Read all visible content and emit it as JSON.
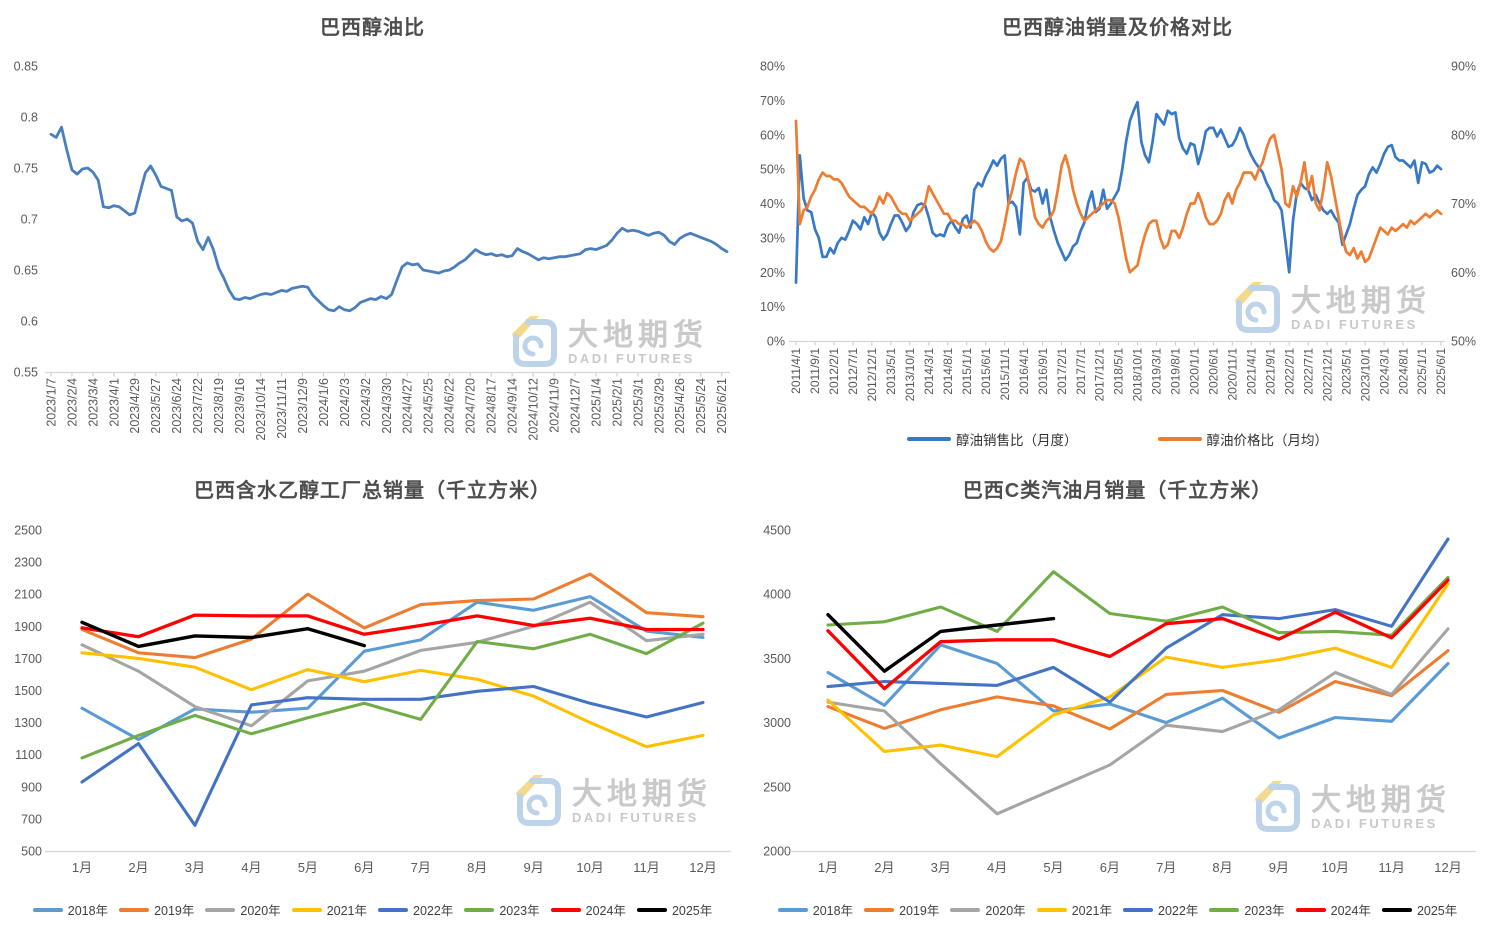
{
  "page": {
    "background": "#ffffff"
  },
  "watermark": {
    "cn": "大地期货",
    "en": "DADI FUTURES",
    "logo_blue": "#bdd3ea",
    "logo_yellow": "#f2d98c",
    "text_color": "#c9c9c9"
  },
  "chart_data": [
    {
      "id": "ethanol_oil_ratio",
      "type": "line",
      "title": "巴西醇油比",
      "ylabel": "",
      "xlabel": "",
      "y_axis": {
        "min": 0.55,
        "max": 0.85,
        "tick_values": [
          0.85,
          0.8,
          0.75,
          0.7,
          0.65,
          0.6,
          0.55
        ],
        "tick_labels": [
          "0.85",
          "0.8",
          "0.75",
          "0.7",
          "0.65",
          "0.6",
          "0.55"
        ]
      },
      "label_every": 4,
      "x_tick_labels": [
        "2023/1/7",
        "2023/2/4",
        "2023/3/4",
        "2023/4/1",
        "2023/4/29",
        "2023/5/27",
        "2023/6/24",
        "2023/7/22",
        "2023/8/19",
        "2023/9/16",
        "2023/10/14",
        "2023/11/11",
        "2023/12/9",
        "2024/1/6",
        "2024/2/3",
        "2024/3/2",
        "2024/3/30",
        "2024/4/27",
        "2024/5/25",
        "2024/6/22",
        "2024/7/20",
        "2024/8/17",
        "2024/9/14",
        "2024/10/12",
        "2024/11/9",
        "2024/12/7",
        "2025/1/4",
        "2025/2/1",
        "2025/3/1",
        "2025/3/29",
        "2025/4/26",
        "2025/5/24",
        "2025/6/21"
      ],
      "series": [
        {
          "name": "醇油比",
          "color": "#4a7ebd",
          "width": 2.8,
          "values": [
            0.783,
            0.78,
            0.79,
            0.768,
            0.748,
            0.744,
            0.749,
            0.75,
            0.746,
            0.738,
            0.712,
            0.711,
            0.713,
            0.712,
            0.708,
            0.704,
            0.706,
            0.726,
            0.745,
            0.752,
            0.743,
            0.732,
            0.73,
            0.728,
            0.702,
            0.698,
            0.7,
            0.696,
            0.678,
            0.67,
            0.682,
            0.67,
            0.652,
            0.642,
            0.63,
            0.622,
            0.621,
            0.623,
            0.622,
            0.624,
            0.626,
            0.627,
            0.626,
            0.628,
            0.63,
            0.629,
            0.632,
            0.633,
            0.634,
            0.633,
            0.625,
            0.62,
            0.615,
            0.611,
            0.61,
            0.614,
            0.611,
            0.61,
            0.613,
            0.618,
            0.62,
            0.622,
            0.621,
            0.624,
            0.622,
            0.626,
            0.64,
            0.653,
            0.657,
            0.655,
            0.656,
            0.65,
            0.649,
            0.648,
            0.647,
            0.649,
            0.65,
            0.653,
            0.657,
            0.66,
            0.665,
            0.67,
            0.667,
            0.665,
            0.666,
            0.664,
            0.665,
            0.663,
            0.664,
            0.671,
            0.668,
            0.666,
            0.663,
            0.66,
            0.662,
            0.661,
            0.662,
            0.663,
            0.663,
            0.664,
            0.665,
            0.666,
            0.67,
            0.671,
            0.67,
            0.672,
            0.674,
            0.679,
            0.686,
            0.691,
            0.688,
            0.689,
            0.688,
            0.686,
            0.684,
            0.686,
            0.687,
            0.684,
            0.678,
            0.675,
            0.681,
            0.684,
            0.686,
            0.684,
            0.682,
            0.68,
            0.678,
            0.675,
            0.671,
            0.668
          ]
        }
      ]
    },
    {
      "id": "sales_price_compare",
      "type": "line",
      "title": "巴西醇油销量及价格对比",
      "left_axis": {
        "min": 0,
        "max": 80,
        "tick_values": [
          80,
          70,
          60,
          50,
          40,
          30,
          20,
          10,
          0
        ],
        "tick_labels": [
          "80%",
          "70%",
          "60%",
          "50%",
          "40%",
          "30%",
          "20%",
          "10%",
          "0%"
        ]
      },
      "right_axis": {
        "min": 50,
        "max": 90,
        "tick_values": [
          90,
          80,
          70,
          60,
          50
        ],
        "tick_labels": [
          "90%",
          "80%",
          "70%",
          "60%",
          "50%"
        ]
      },
      "label_every": 5,
      "x_tick_labels": [
        "2011/4/1",
        "2011/9/1",
        "2012/2/1",
        "2012/7/1",
        "2012/12/1",
        "2013/5/1",
        "2013/10/1",
        "2014/3/1",
        "2014/8/1",
        "2015/1/1",
        "2015/6/1",
        "2015/11/1",
        "2016/4/1",
        "2016/9/1",
        "2017/2/1",
        "2017/7/1",
        "2017/12/1",
        "2018/5/1",
        "2018/10/1",
        "2019/3/1",
        "2019/8/1",
        "2020/1/1",
        "2020/6/1",
        "2020/11/1",
        "2021/4/1",
        "2021/9/1",
        "2022/2/1",
        "2022/7/1",
        "2022/12/1",
        "2023/5/1",
        "2023/10/1",
        "2024/3/1",
        "2024/8/1",
        "2025/1/1",
        "2025/6/1"
      ],
      "legend_position": "bottom",
      "series": [
        {
          "name": "醇油销售比（月度）",
          "axis": "left",
          "color": "#3879c7",
          "width": 2.7,
          "values": [
            17,
            54,
            41.5,
            38,
            37.5,
            32.5,
            30,
            24.5,
            24.5,
            27,
            25.5,
            28.5,
            30,
            29.5,
            32,
            35,
            34,
            32.5,
            36,
            34,
            37.5,
            36,
            31.5,
            29.5,
            31,
            34,
            36.5,
            36.5,
            34.5,
            32,
            33.5,
            37.5,
            39.5,
            40,
            39.5,
            36,
            31.5,
            30.5,
            31,
            30.5,
            33.5,
            35,
            33,
            31.5,
            35.5,
            36.5,
            33,
            44,
            46,
            45,
            48,
            50,
            52.5,
            51,
            53,
            54,
            40,
            40.5,
            39,
            31,
            46,
            47.5,
            44,
            43.5,
            44.5,
            40,
            44,
            36,
            32,
            28.5,
            26,
            23.5,
            25,
            27.5,
            28.5,
            32,
            34.5,
            40,
            43.5,
            37.5,
            38.5,
            44,
            38.5,
            40,
            42,
            44,
            50,
            58,
            64,
            67,
            69.5,
            58,
            54,
            52,
            58,
            66,
            64.5,
            63,
            67,
            66,
            66.5,
            59,
            56,
            54.5,
            57.5,
            57,
            51.5,
            55.5,
            61,
            62,
            62,
            59.5,
            61.5,
            59,
            56.5,
            57,
            59,
            62,
            60,
            56.5,
            54,
            52,
            50.5,
            49,
            46,
            44,
            41,
            40,
            38,
            29,
            20,
            35,
            43,
            46,
            44.5,
            44,
            41,
            42.5,
            40,
            38,
            37,
            38,
            36,
            34.5,
            28,
            31,
            34,
            38.5,
            42.5,
            44,
            45,
            48.5,
            50.5,
            49,
            51.5,
            54.5,
            56.5,
            57,
            53.5,
            52.5,
            52.5,
            51.5,
            50.5,
            52.5,
            46,
            52,
            51.5,
            49,
            49.5,
            51,
            50
          ]
        },
        {
          "name": "醇油价格比（月均）",
          "axis": "right",
          "color": "#ed7d31",
          "width": 2.7,
          "values": [
            82,
            67,
            69,
            69.5,
            71,
            72,
            73.5,
            74.5,
            74,
            74,
            73.5,
            73.5,
            73,
            72,
            71,
            70.5,
            70,
            69.5,
            69.5,
            69,
            68.5,
            69.5,
            71,
            70,
            71.5,
            71,
            70,
            69,
            68.5,
            68.5,
            67.5,
            68,
            68.5,
            69,
            70,
            72.5,
            71.5,
            70.5,
            69.5,
            68.5,
            68.5,
            67.5,
            67.5,
            67,
            67,
            66.5,
            67,
            67.5,
            67,
            66,
            64.5,
            63.5,
            63,
            63.5,
            64.5,
            67,
            70,
            72,
            74.5,
            76.5,
            76,
            74,
            71,
            68,
            67,
            66.5,
            67.5,
            68,
            69,
            72,
            75.5,
            77,
            75,
            72,
            70,
            68.5,
            67.5,
            68,
            68.5,
            69,
            69.5,
            70,
            70.5,
            70.5,
            70,
            68,
            65,
            62,
            60,
            60.5,
            61,
            63.5,
            65.5,
            67,
            67.5,
            67.5,
            65,
            63.5,
            64,
            66,
            66,
            65,
            66.5,
            68.5,
            70,
            70,
            71.5,
            70,
            68,
            67,
            67,
            67.5,
            68.5,
            70.5,
            71.5,
            70,
            72,
            73,
            74.5,
            74.5,
            74.5,
            73.5,
            75,
            76,
            78,
            79.5,
            80,
            77.5,
            75,
            70,
            69.5,
            72.5,
            71,
            73,
            76,
            72,
            74,
            70,
            69,
            72,
            76,
            74,
            71,
            68,
            65,
            63,
            62.5,
            63.5,
            62,
            63,
            61.5,
            62,
            63.5,
            65,
            66.5,
            66,
            65.5,
            66.5,
            66,
            66.5,
            67,
            66.5,
            67.5,
            67,
            67.5,
            68,
            68.5,
            68,
            68.5,
            69,
            68.5
          ]
        }
      ]
    },
    {
      "id": "hydrous_ethanol_factory_sales",
      "type": "line",
      "title": "巴西含水乙醇工厂总销量（千立方米）",
      "y_axis": {
        "min": 500,
        "max": 2500,
        "tick_values": [
          2500,
          2300,
          2100,
          1900,
          1700,
          1500,
          1300,
          1100,
          900,
          700,
          500
        ],
        "tick_labels": [
          "2500",
          "2300",
          "2100",
          "1900",
          "1700",
          "1500",
          "1300",
          "1100",
          "900",
          "700",
          "500"
        ]
      },
      "categories": [
        "1月",
        "2月",
        "3月",
        "4月",
        "5月",
        "6月",
        "7月",
        "8月",
        "9月",
        "10月",
        "11月",
        "12月"
      ],
      "legend_position": "bottom",
      "series": [
        {
          "name": "2018年",
          "color": "#5B9BD5",
          "width": 3.1,
          "values": [
            1390,
            1195,
            1385,
            1365,
            1390,
            1745,
            1815,
            2050,
            2000,
            2085,
            1870,
            1830
          ]
        },
        {
          "name": "2019年",
          "color": "#ED7D31",
          "width": 3.1,
          "values": [
            1880,
            1735,
            1705,
            1820,
            2100,
            1890,
            2035,
            2060,
            2070,
            2225,
            1985,
            1960
          ]
        },
        {
          "name": "2020年",
          "color": "#A5A5A5",
          "width": 3.1,
          "values": [
            1785,
            1620,
            1400,
            1280,
            1560,
            1620,
            1750,
            1800,
            1900,
            2050,
            1810,
            1850
          ]
        },
        {
          "name": "2021年",
          "color": "#FFC000",
          "width": 3.1,
          "values": [
            1735,
            1700,
            1645,
            1505,
            1630,
            1555,
            1625,
            1570,
            1465,
            1300,
            1150,
            1220
          ]
        },
        {
          "name": "2022年",
          "color": "#4472C4",
          "width": 3.1,
          "values": [
            930,
            1170,
            660,
            1410,
            1455,
            1445,
            1445,
            1495,
            1525,
            1420,
            1335,
            1425
          ]
        },
        {
          "name": "2023年",
          "color": "#70AD47",
          "width": 3.1,
          "values": [
            1080,
            1220,
            1345,
            1230,
            1330,
            1420,
            1320,
            1805,
            1760,
            1850,
            1730,
            1920
          ]
        },
        {
          "name": "2024年",
          "color": "#FF0000",
          "width": 3.3,
          "values": [
            1890,
            1835,
            1970,
            1965,
            1965,
            1850,
            1905,
            1965,
            1905,
            1950,
            1880,
            1880
          ]
        },
        {
          "name": "2025年",
          "color": "#000000",
          "width": 3.4,
          "values": [
            1925,
            1775,
            1840,
            1830,
            1885,
            1780
          ]
        }
      ]
    },
    {
      "id": "gasoline_c_monthly_sales",
      "type": "line",
      "title": "巴西C类汽油月销量（千立方米）",
      "y_axis": {
        "min": 2000,
        "max": 4500,
        "tick_values": [
          4500,
          4000,
          3500,
          3000,
          2500,
          2000
        ],
        "tick_labels": [
          "4500",
          "4000",
          "3500",
          "3000",
          "2500",
          "2000"
        ]
      },
      "categories": [
        "1月",
        "2月",
        "3月",
        "4月",
        "5月",
        "6月",
        "7月",
        "8月",
        "9月",
        "10月",
        "11月",
        "12月"
      ],
      "legend_position": "bottom",
      "series": [
        {
          "name": "2018年",
          "color": "#5B9BD5",
          "width": 3.1,
          "values": [
            3390,
            3135,
            3605,
            3460,
            3090,
            3145,
            3000,
            3190,
            2880,
            3040,
            3010,
            3460
          ]
        },
        {
          "name": "2019年",
          "color": "#ED7D31",
          "width": 3.1,
          "values": [
            3125,
            2955,
            3100,
            3200,
            3130,
            2950,
            3220,
            3250,
            3080,
            3320,
            3210,
            3560
          ]
        },
        {
          "name": "2020年",
          "color": "#A5A5A5",
          "width": 3.1,
          "values": [
            3160,
            3090,
            2680,
            2290,
            2480,
            2670,
            2980,
            2930,
            3100,
            3390,
            3220,
            3730
          ]
        },
        {
          "name": "2021年",
          "color": "#FFC000",
          "width": 3.1,
          "values": [
            3175,
            2775,
            2825,
            2735,
            3060,
            3200,
            3510,
            3430,
            3490,
            3580,
            3430,
            4080
          ]
        },
        {
          "name": "2022年",
          "color": "#4472C4",
          "width": 3.1,
          "values": [
            3280,
            3320,
            3305,
            3290,
            3430,
            3160,
            3580,
            3840,
            3810,
            3880,
            3750,
            4430
          ]
        },
        {
          "name": "2023年",
          "color": "#70AD47",
          "width": 3.1,
          "values": [
            3760,
            3785,
            3900,
            3710,
            4175,
            3850,
            3790,
            3900,
            3700,
            3710,
            3680,
            4130
          ]
        },
        {
          "name": "2024年",
          "color": "#FF0000",
          "width": 3.3,
          "values": [
            3715,
            3265,
            3630,
            3645,
            3645,
            3515,
            3770,
            3810,
            3650,
            3860,
            3660,
            4110
          ]
        },
        {
          "name": "2025年",
          "color": "#000000",
          "width": 3.4,
          "values": [
            3840,
            3400,
            3710,
            3760,
            3810
          ]
        }
      ]
    }
  ]
}
